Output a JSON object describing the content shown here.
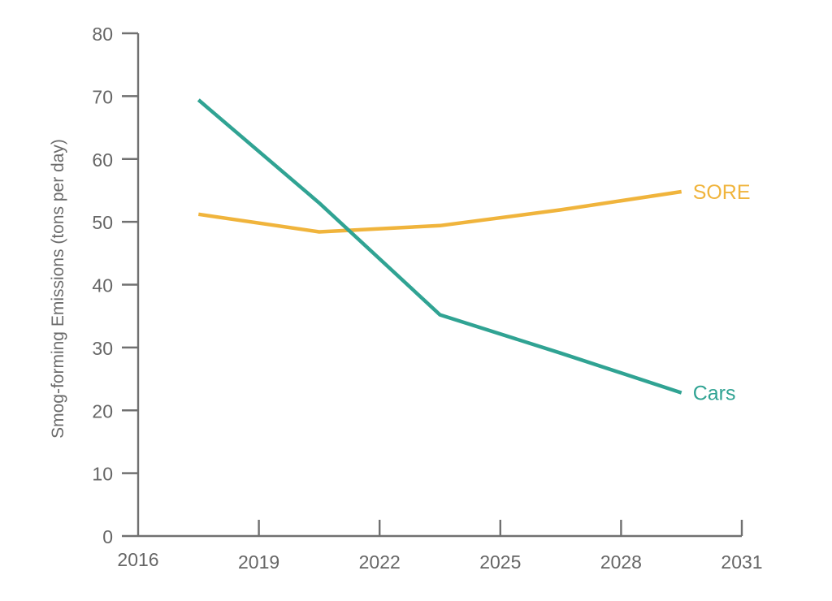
{
  "chart_data": {
    "type": "line",
    "title": "",
    "xlabel": "",
    "ylabel": "Smog-forming Emissions (tons per day)",
    "xlim": [
      2016,
      2031
    ],
    "ylim": [
      0,
      80
    ],
    "x_ticks": [
      "2016",
      "2019",
      "2022",
      "2025",
      "2028",
      "2031"
    ],
    "y_ticks": [
      "0",
      "10",
      "20",
      "30",
      "40",
      "50",
      "60",
      "70",
      "80"
    ],
    "grid": false,
    "legend": "inline-right",
    "series": [
      {
        "name": "SORE",
        "color": "#f0b43c",
        "x": [
          2017.5,
          2020.5,
          2023.5,
          2026.5,
          2029.5
        ],
        "y": [
          51.2,
          48.4,
          49.4,
          51.9,
          54.8
        ]
      },
      {
        "name": "Cars",
        "color": "#30a393",
        "x": [
          2017.5,
          2020.5,
          2023.5,
          2026.5,
          2029.5
        ],
        "y": [
          69.4,
          53.0,
          35.2,
          29.1,
          22.8
        ]
      }
    ]
  }
}
